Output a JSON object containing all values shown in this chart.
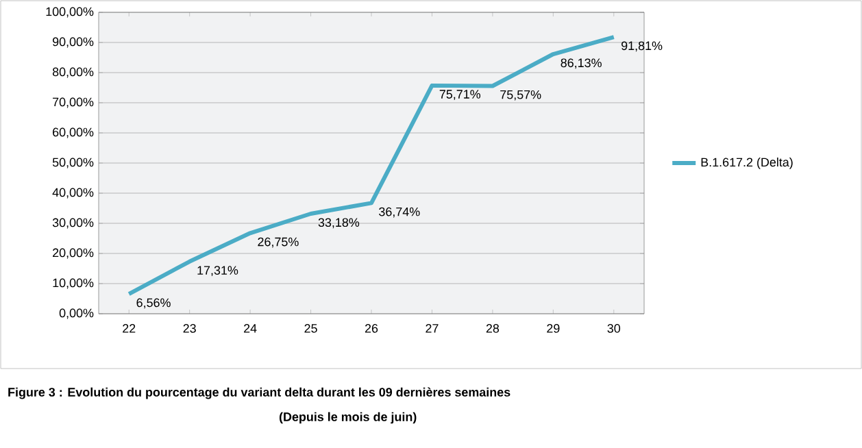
{
  "chart_data": {
    "type": "line",
    "categories": [
      "22",
      "23",
      "24",
      "25",
      "26",
      "27",
      "28",
      "29",
      "30"
    ],
    "series": [
      {
        "name": "B.1.617.2 (Delta)",
        "color": "#4bacc6",
        "values": [
          6.56,
          17.31,
          26.75,
          33.18,
          36.74,
          75.71,
          75.57,
          86.13,
          91.81
        ],
        "value_labels": [
          "6,56%",
          "17,31%",
          "26,75%",
          "33,18%",
          "36,74%",
          "75,71%",
          "75,57%",
          "86,13%",
          "91,81%"
        ]
      }
    ],
    "ylim": [
      0,
      100
    ],
    "yticks": [
      {
        "value": 0,
        "label": "0,00%"
      },
      {
        "value": 10,
        "label": "10,00%"
      },
      {
        "value": 20,
        "label": "20,00%"
      },
      {
        "value": 30,
        "label": "30,00%"
      },
      {
        "value": 40,
        "label": "40,00%"
      },
      {
        "value": 50,
        "label": "50,00%"
      },
      {
        "value": 60,
        "label": "60,00%"
      },
      {
        "value": 70,
        "label": "70,00%"
      },
      {
        "value": 80,
        "label": "80,00%"
      },
      {
        "value": 90,
        "label": "90,00%"
      },
      {
        "value": 100,
        "label": "100,00%"
      }
    ],
    "grid": "y",
    "legend": "right",
    "marker": "none",
    "line_style": "solid",
    "annotations": [
      "Figure 3 : Evolution du pourcentage du variant delta durant les 09 dernières  semaines",
      "(Depuis le mois de juin)"
    ]
  }
}
